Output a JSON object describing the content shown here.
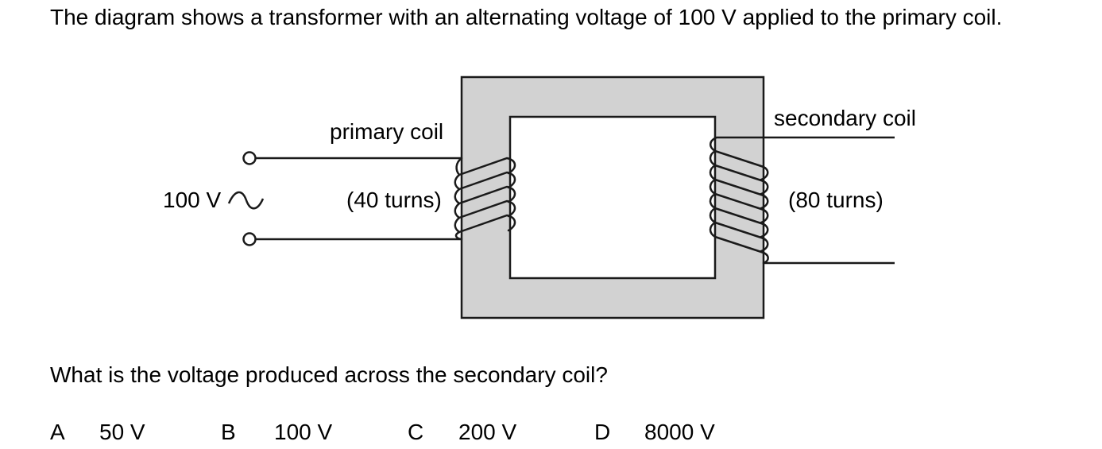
{
  "question": {
    "intro": "The diagram shows a transformer with an alternating voltage of 100 V applied to the primary coil.",
    "prompt": "What is the voltage produced across the secondary coil?"
  },
  "diagram": {
    "supply_voltage_label": "100 V",
    "primary_label": "primary coil",
    "primary_turns_label": "(40 turns)",
    "secondary_label": "secondary coil",
    "secondary_turns_label": "(80 turns)",
    "core_color": "#d2d2d2",
    "line_color": "#1a1a1a"
  },
  "options": [
    {
      "letter": "A",
      "value": "50 V"
    },
    {
      "letter": "B",
      "value": "100 V"
    },
    {
      "letter": "C",
      "value": "200 V"
    },
    {
      "letter": "D",
      "value": "8000 V"
    }
  ]
}
